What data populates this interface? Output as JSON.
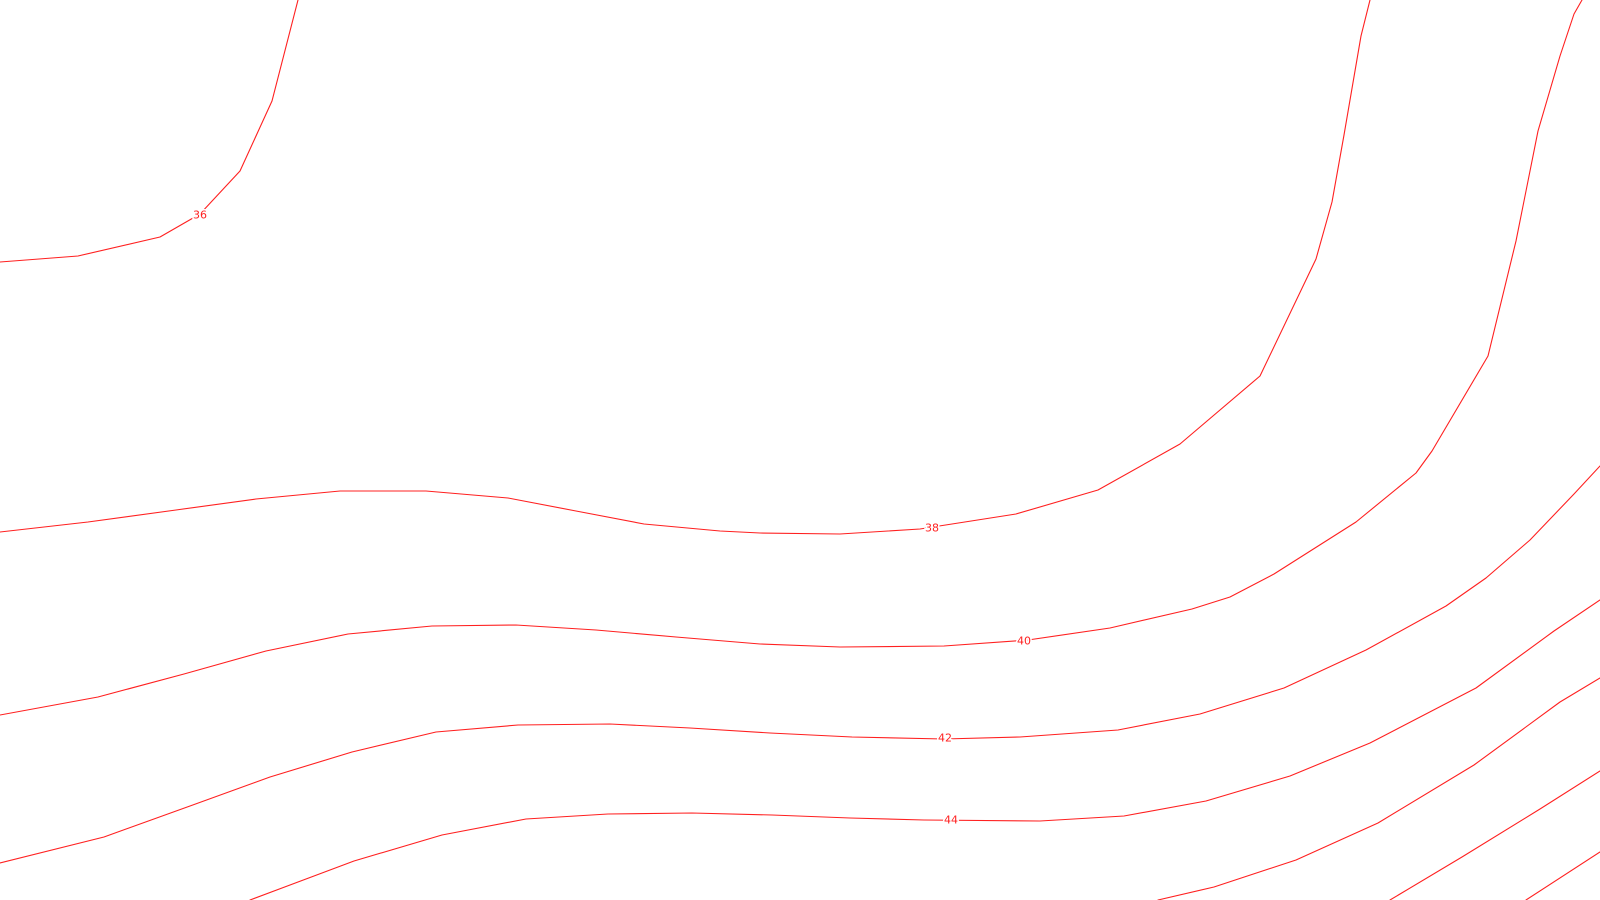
{
  "map": {
    "colors": {
      "background": "#ffffff",
      "contour": "#ff2020"
    },
    "contours": [
      {
        "id": "c36",
        "label": "36"
      },
      {
        "id": "c38",
        "label": "38"
      },
      {
        "id": "c40",
        "label": "40"
      },
      {
        "id": "c42",
        "label": "42"
      },
      {
        "id": "c44",
        "label": "44"
      },
      {
        "id": "c46",
        "label": ""
      },
      {
        "id": "c48",
        "label": ""
      },
      {
        "id": "c50",
        "label": ""
      }
    ]
  }
}
